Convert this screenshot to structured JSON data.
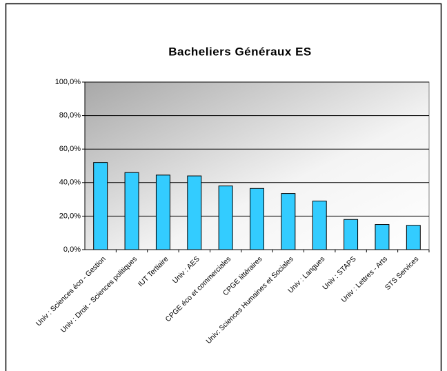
{
  "chart_data": {
    "type": "bar",
    "title": "Bacheliers Généraux ES",
    "categories": [
      "Univ : Sciences éco - Gestion",
      "Univ : Droit - Sciences politiques",
      "IUT Tertiaire",
      "Univ : AES",
      "CPGE éco et commerciales",
      "CPGE littéraires",
      "Univ: Sciences Humaines et Sociales",
      "Univ : Langues",
      "Univ : STAPS",
      "Univ : Lettres - Arts",
      "STS Services"
    ],
    "values": [
      52,
      46,
      44.5,
      44,
      38,
      36.5,
      33.5,
      29,
      18,
      15,
      14.5
    ],
    "color": "#33ccff",
    "ylim": [
      0,
      100
    ],
    "yticks": [
      {
        "value": 0,
        "label": "0,0%"
      },
      {
        "value": 20,
        "label": "20,0%"
      },
      {
        "value": 40,
        "label": "40,0%"
      },
      {
        "value": 60,
        "label": "60,0%"
      },
      {
        "value": 80,
        "label": "80,0%"
      },
      {
        "value": 100,
        "label": "100,0%"
      }
    ],
    "grid": true
  }
}
